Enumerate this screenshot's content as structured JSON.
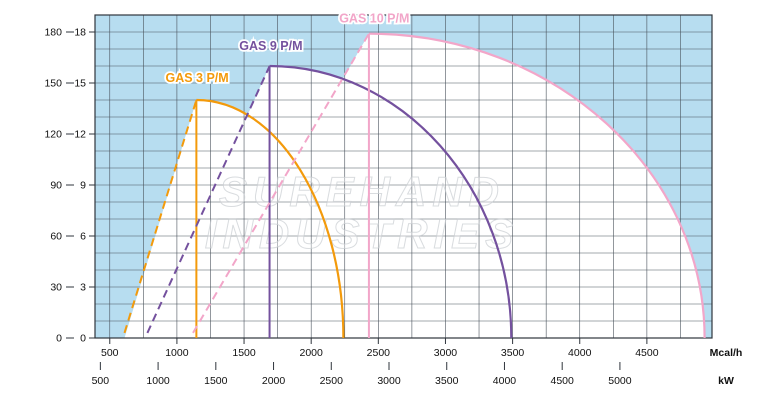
{
  "watermark": {
    "line1": "SUREHAND",
    "line2": "INDUSTRIES"
  },
  "colors": {
    "plot_bg": "#b7ddf0",
    "working_area": "#ffffff",
    "grid": "#49525c",
    "border": "#2f353c",
    "axis_text": "#111111",
    "watermark": "#c9cdd2"
  },
  "chart_data": {
    "type": "line",
    "x_domain": [
      390,
      4985
    ],
    "y_domain": [
      0,
      19
    ],
    "grid": {
      "x_start": 500,
      "x_step": 250,
      "y_step": 1
    },
    "x_axis_mcal": {
      "unit": "Mcal/h",
      "ticks": [
        500,
        1000,
        1500,
        2000,
        2500,
        3000,
        3500,
        4000,
        4500
      ]
    },
    "x_axis_kw": {
      "unit": "kW",
      "kw_per_mcal": 1.163,
      "ticks": [
        500,
        1000,
        1500,
        2000,
        2500,
        3000,
        3500,
        4000,
        4500,
        5000
      ]
    },
    "y_axis_inner": {
      "ticks": [
        0,
        3,
        6,
        9,
        12,
        15,
        18
      ]
    },
    "y_axis_outer": {
      "ticks": [
        0,
        30,
        60,
        90,
        120,
        150,
        180
      ]
    },
    "series": [
      {
        "name": "GAS 3 P/M",
        "color": "#f39a0b",
        "dash_start": [
          610,
          0.3
        ],
        "peak": [
          1145,
          14.0
        ],
        "end_x": 2240,
        "label_at": [
          1150,
          15.05
        ]
      },
      {
        "name": "GAS 9 P/M",
        "color": "#74519e",
        "dash_start": [
          780,
          0.3
        ],
        "peak": [
          1690,
          16.0
        ],
        "end_x": 3490,
        "label_at": [
          1700,
          16.95
        ]
      },
      {
        "name": "GAS 10 P/M",
        "color": "#f2a6c9",
        "dash_start": [
          1120,
          0.3
        ],
        "peak": [
          2430,
          17.9
        ],
        "end_x": 4930,
        "label_at": [
          2470,
          18.55
        ]
      }
    ]
  }
}
